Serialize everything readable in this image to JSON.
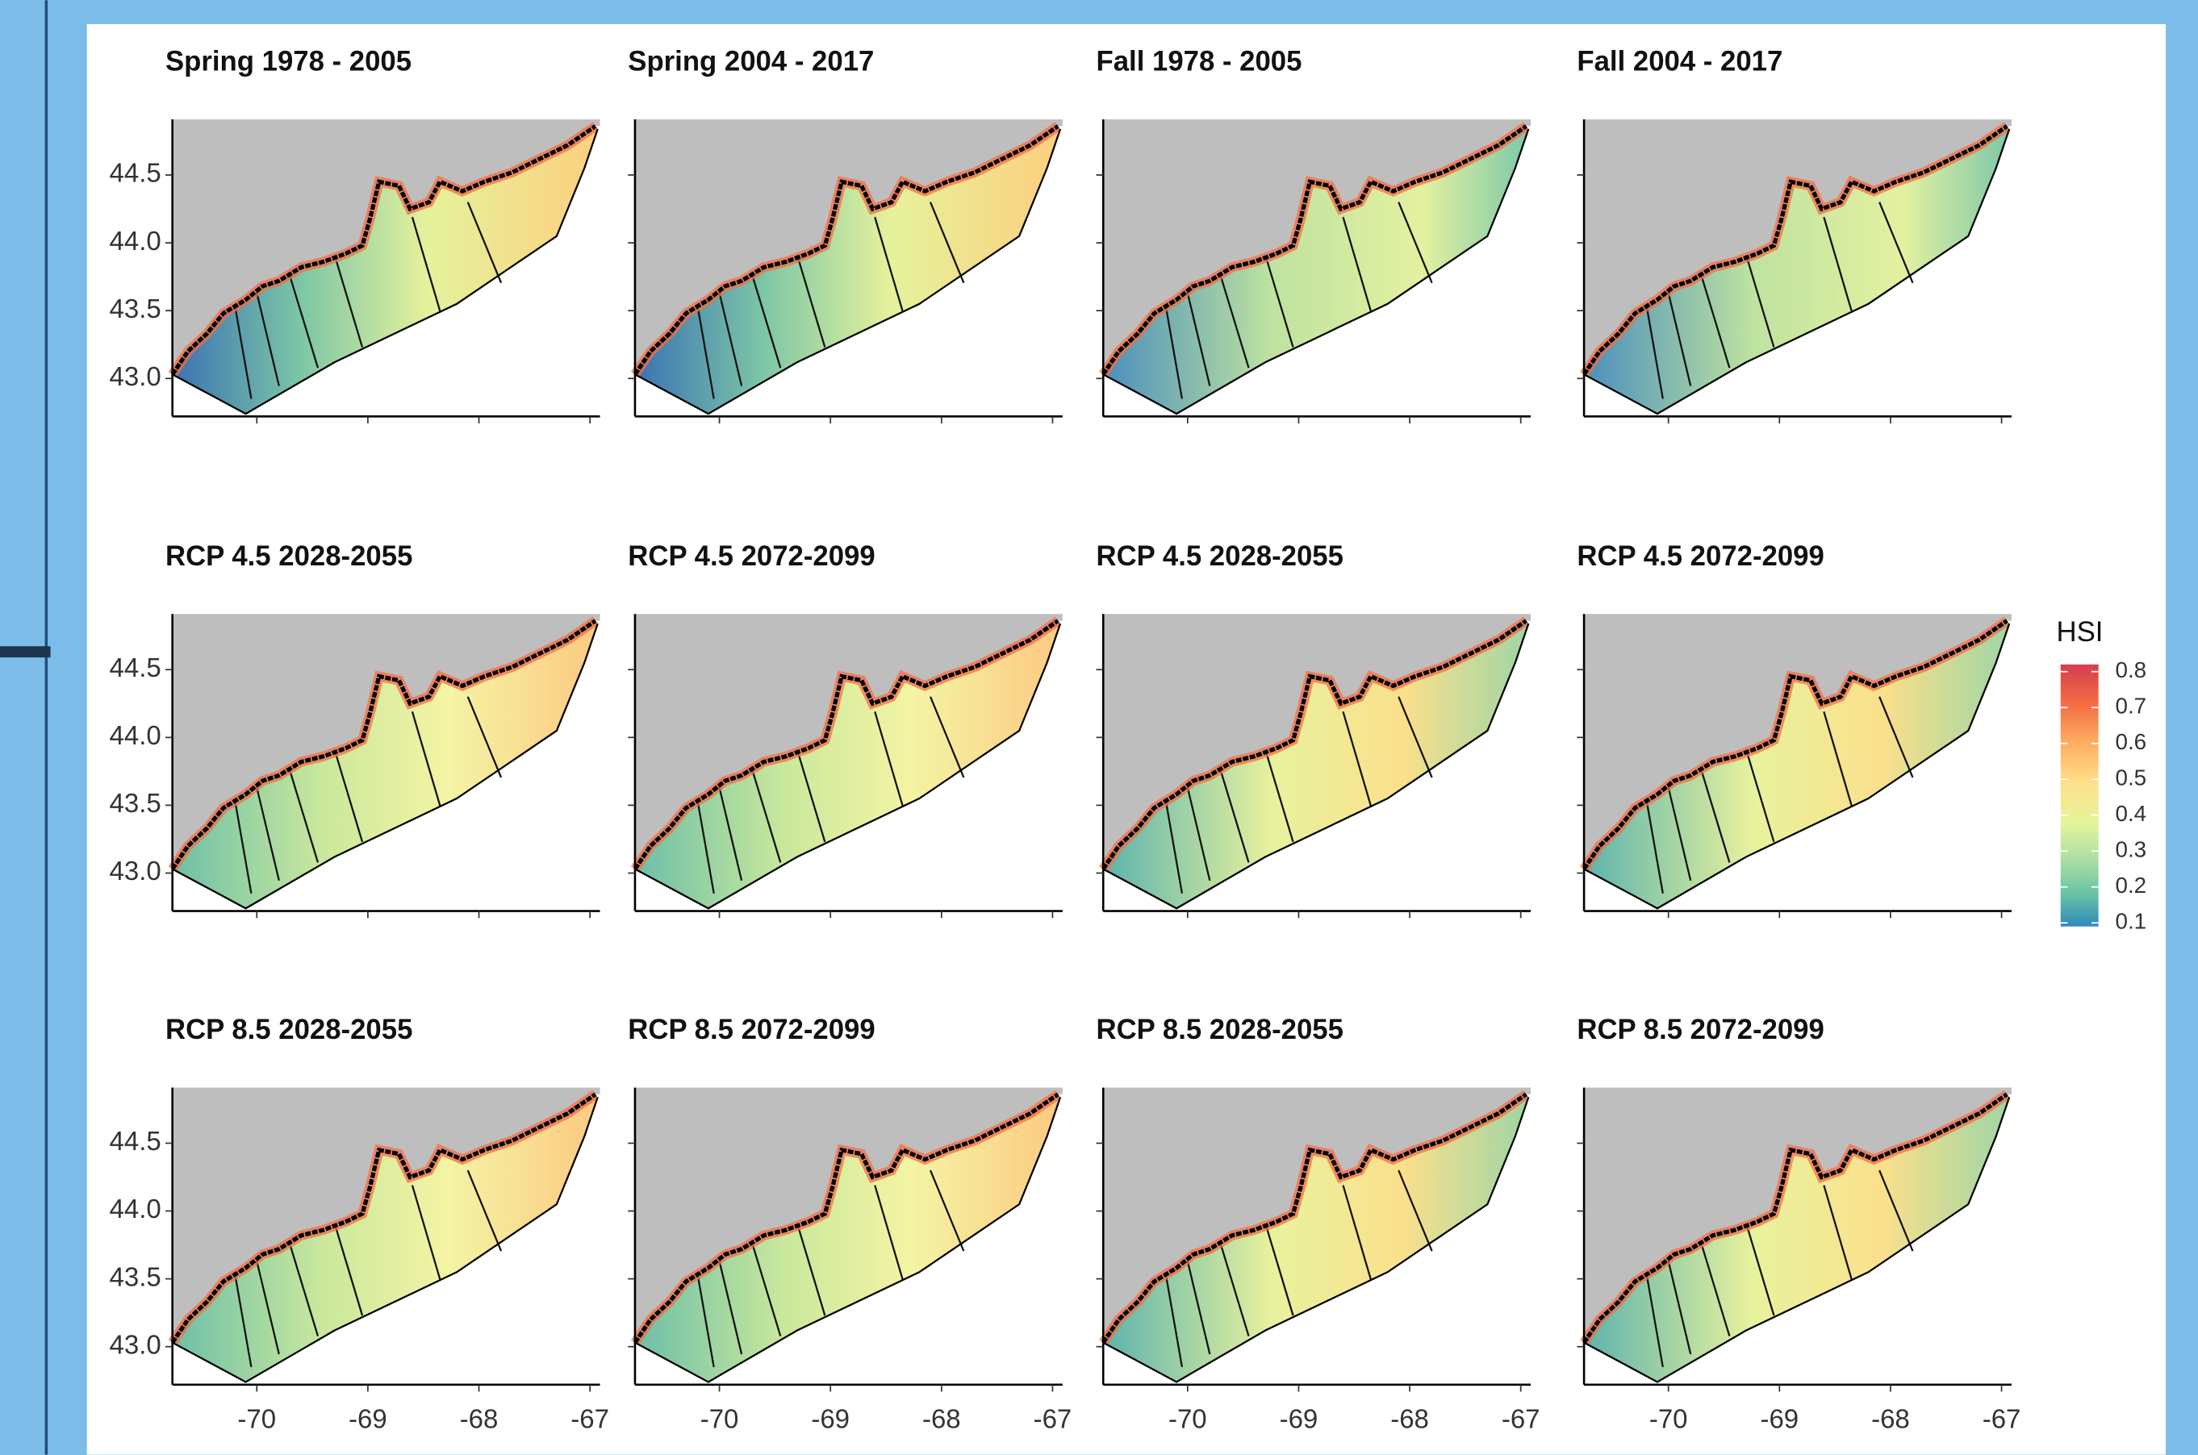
{
  "chart_data": {
    "type": "map",
    "panels": [
      "Spring 1978 - 2005",
      "Spring 2004 - 2017",
      "Fall 1978 - 2005",
      "Fall 2004 - 2017",
      "RCP 4.5 2028-2055",
      "RCP 4.5 2072-2099",
      "RCP 4.5 2028-2055",
      "RCP 4.5 2072-2099",
      "RCP 8.5 2028-2055",
      "RCP 8.5 2072-2099",
      "RCP 8.5 2028-2055",
      "RCP 8.5 2072-2099"
    ],
    "xlim": [
      -70.76,
      -66.91
    ],
    "ylim": [
      42.72,
      44.91
    ],
    "xticks": [
      -70,
      -69,
      -68,
      -67
    ],
    "yticks": [
      {
        "value": 43,
        "label": "43.0"
      },
      43.5,
      {
        "value": 44,
        "label": "44.0"
      },
      44.5
    ],
    "legend": {
      "title": "HSI",
      "lim": [
        0.09,
        0.82
      ],
      "ticks": [
        0.1,
        0.2,
        0.3,
        0.4,
        0.5,
        0.6,
        0.7,
        0.8
      ]
    }
  }
}
